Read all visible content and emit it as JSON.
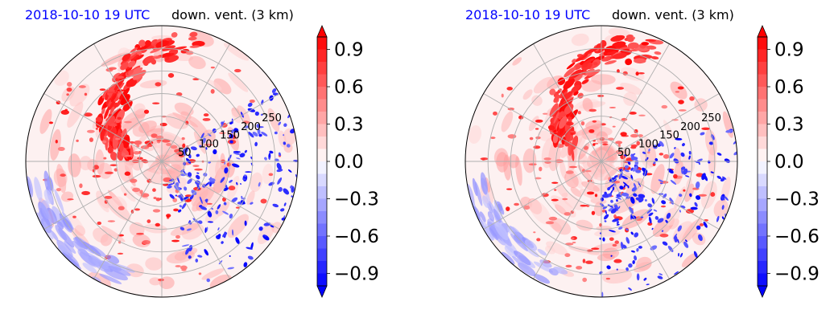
{
  "figure": {
    "colors": {
      "positive": "#ff0000",
      "negative": "#0000ff",
      "zero": "#ffffff",
      "grid": "#b0b0b0",
      "title_left": "#0000ff"
    }
  },
  "chart_data": [
    {
      "type": "heatmap",
      "projection": "polar",
      "title_left": "2018-10-10 19 UTC",
      "title_right": "down. vent. (3 km)",
      "radial_ticks": [
        "50",
        "100",
        "150",
        "200",
        "250"
      ],
      "radial_tick_values": [
        50,
        100,
        150,
        200,
        250
      ],
      "r_max": 300,
      "grid": true,
      "colorbar": {
        "ticks": [
          "0.9",
          "0.6",
          "0.3",
          "0.0",
          "−0.3",
          "−0.6",
          "−0.9"
        ],
        "tick_values": [
          0.9,
          0.6,
          0.3,
          0.0,
          -0.3,
          -0.6,
          -0.9
        ],
        "vmin": -1.0,
        "vmax": 1.0,
        "extend": "both",
        "cmap": "bwr"
      }
    },
    {
      "type": "heatmap",
      "projection": "polar",
      "title_left": "2018-10-10 19 UTC",
      "title_right": "down. vent. (3 km)",
      "radial_ticks": [
        "50",
        "100",
        "150",
        "200",
        "250"
      ],
      "radial_tick_values": [
        50,
        100,
        150,
        200,
        250
      ],
      "r_max": 300,
      "grid": true,
      "colorbar": {
        "ticks": [
          "0.9",
          "0.6",
          "0.3",
          "0.0",
          "−0.3",
          "−0.6",
          "−0.9"
        ],
        "tick_values": [
          0.9,
          0.6,
          0.3,
          0.0,
          -0.3,
          -0.6,
          -0.9
        ],
        "vmin": -1.0,
        "vmax": 1.0,
        "extend": "both",
        "cmap": "bwr"
      }
    }
  ]
}
